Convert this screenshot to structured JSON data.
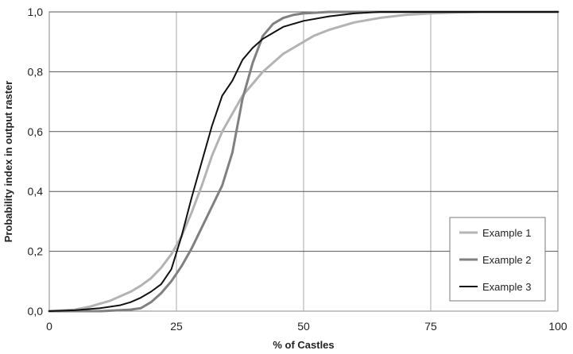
{
  "chart_data": {
    "type": "line",
    "title": "",
    "xlabel": "% of Castles",
    "ylabel": "Probability index in output raster",
    "xlim": [
      0,
      100
    ],
    "ylim": [
      0,
      1
    ],
    "xticks": [
      0,
      25,
      50,
      75,
      100
    ],
    "xtick_labels": [
      "0",
      "25",
      "50",
      "75",
      "100"
    ],
    "yticks": [
      0,
      0.2,
      0.4,
      0.6,
      0.8,
      1.0
    ],
    "ytick_labels": [
      "0,0",
      "0,2",
      "0,4",
      "0,6",
      "0,8",
      "1,0"
    ],
    "grid": "major x and y",
    "legend_position": "bottom-right",
    "series": [
      {
        "name": "Example 1",
        "color": "#b3b3b3",
        "x": [
          0,
          5,
          8,
          10,
          12,
          14,
          16,
          18,
          20,
          22,
          24,
          26,
          28,
          30,
          32,
          34,
          36,
          38,
          40,
          42,
          44,
          46,
          48,
          50,
          52,
          55,
          60,
          65,
          70,
          75,
          80,
          85,
          90,
          95,
          100
        ],
        "y": [
          0,
          0.005,
          0.015,
          0.025,
          0.035,
          0.05,
          0.065,
          0.085,
          0.11,
          0.145,
          0.19,
          0.25,
          0.33,
          0.42,
          0.52,
          0.6,
          0.66,
          0.72,
          0.76,
          0.8,
          0.83,
          0.86,
          0.88,
          0.9,
          0.92,
          0.94,
          0.965,
          0.98,
          0.99,
          0.995,
          0.998,
          1.0,
          1.0,
          1.0,
          1.0
        ]
      },
      {
        "name": "Example 2",
        "color": "#808080",
        "x": [
          0,
          10,
          16,
          18,
          20,
          22,
          24,
          26,
          28,
          30,
          32,
          34,
          36,
          38,
          40,
          42,
          44,
          46,
          48,
          50,
          55,
          60,
          70,
          80,
          100
        ],
        "y": [
          0,
          0,
          0.005,
          0.01,
          0.03,
          0.06,
          0.1,
          0.15,
          0.21,
          0.28,
          0.35,
          0.42,
          0.53,
          0.71,
          0.83,
          0.92,
          0.96,
          0.98,
          0.99,
          0.995,
          1.0,
          1.0,
          1.0,
          1.0,
          1.0
        ]
      },
      {
        "name": "Example 3",
        "color": "#111111",
        "x": [
          0,
          5,
          10,
          14,
          16,
          18,
          20,
          22,
          24,
          26,
          28,
          30,
          32,
          34,
          36,
          38,
          40,
          42,
          44,
          46,
          48,
          50,
          55,
          60,
          65,
          70,
          80,
          100
        ],
        "y": [
          0,
          0.003,
          0.01,
          0.02,
          0.03,
          0.045,
          0.065,
          0.09,
          0.14,
          0.25,
          0.38,
          0.5,
          0.62,
          0.72,
          0.77,
          0.84,
          0.88,
          0.91,
          0.93,
          0.95,
          0.96,
          0.97,
          0.985,
          0.995,
          1.0,
          1.0,
          1.0,
          1.0
        ]
      }
    ]
  }
}
